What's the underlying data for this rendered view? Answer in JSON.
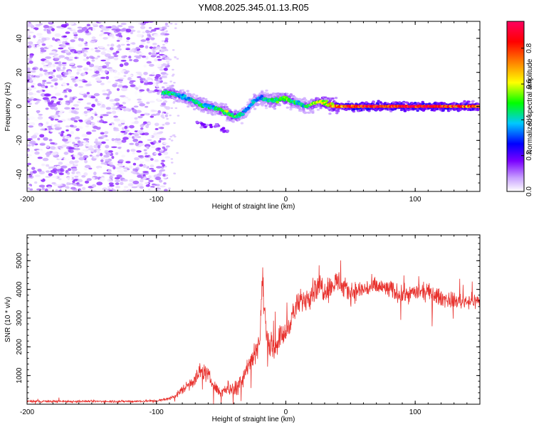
{
  "figure": {
    "title": "YM08.2025.345.01.13.R05"
  },
  "chart_data": [
    {
      "type": "heatmap",
      "name": "spectrogram",
      "title": "YM08.2025.345.01.13.R05",
      "xlabel": "Height of straight line (km)",
      "ylabel": "Frequency (Hz)",
      "xlim": [
        -200,
        150
      ],
      "ylim": [
        -50,
        50
      ],
      "xticks": [
        -200,
        -100,
        0,
        100
      ],
      "yticks": [
        -40,
        -20,
        0,
        20,
        40
      ],
      "grid": false,
      "colorbar": {
        "label": "Normalized spectral amplitude",
        "range": [
          0,
          0.95
        ],
        "ticks": [
          0.0,
          0.2,
          0.4,
          0.6,
          0.8
        ],
        "tick_labels": [
          "0.0",
          "0.2",
          "0.4",
          "0.6",
          "0.8"
        ],
        "colormap": [
          "#ffffff",
          "#c8a0ff",
          "#7a00ff",
          "#0000ff",
          "#00c8ff",
          "#00ff00",
          "#ffff00",
          "#ff8000",
          "#ff0000",
          "#ff0060"
        ]
      },
      "noise_region": {
        "x": [
          -200,
          -95
        ],
        "freq": [
          -50,
          50
        ],
        "amplitude_range": [
          0.0,
          0.2
        ]
      },
      "ridge": {
        "x": [
          -95,
          -90,
          -85,
          -80,
          -75,
          -70,
          -65,
          -60,
          -55,
          -50,
          -45,
          -40,
          -35,
          -30,
          -25,
          -20,
          -15,
          -10,
          -5,
          0,
          5,
          10,
          15,
          20,
          25,
          30,
          35,
          40,
          45,
          50,
          60,
          70,
          80,
          90,
          100,
          110,
          120,
          130,
          140,
          150
        ],
        "freq": [
          8,
          8,
          7,
          6,
          4,
          3,
          1,
          0,
          -1,
          -2,
          -4,
          -6,
          -5,
          -2,
          3,
          5,
          4,
          3,
          4,
          5,
          3,
          2,
          0,
          1,
          3,
          2,
          1,
          0,
          0,
          0,
          0,
          0,
          0,
          0,
          0,
          0,
          0,
          0,
          0,
          0
        ],
        "amplitude": [
          0.5,
          0.55,
          0.5,
          0.45,
          0.45,
          0.5,
          0.5,
          0.5,
          0.5,
          0.55,
          0.6,
          0.6,
          0.5,
          0.4,
          0.45,
          0.45,
          0.5,
          0.55,
          0.55,
          0.6,
          0.55,
          0.5,
          0.5,
          0.6,
          0.65,
          0.7,
          0.75,
          0.8,
          0.85,
          0.9,
          0.95,
          0.95,
          0.9,
          0.95,
          0.95,
          0.95,
          0.9,
          0.9,
          0.85,
          0.85
        ]
      },
      "side_branch": {
        "x": [
          -70,
          -65,
          -60,
          -55,
          -50,
          -45
        ],
        "freq": [
          -10,
          -11,
          -12,
          -11,
          -13,
          -15
        ],
        "amplitude": 0.2
      }
    },
    {
      "type": "line",
      "name": "snr",
      "xlabel": "Height of straight line (km)",
      "ylabel": "SNR (10 * v/v)",
      "xlim": [
        -200,
        150
      ],
      "ylim": [
        0,
        5900
      ],
      "xticks": [
        -200,
        -100,
        0,
        100
      ],
      "yticks": [
        1000,
        2000,
        3000,
        4000,
        5000
      ],
      "grid": false,
      "color": "#e8322e",
      "series": [
        {
          "x": [
            -200,
            -190,
            -180,
            -170,
            -160,
            -150,
            -140,
            -130,
            -120,
            -110,
            -100,
            -95,
            -90,
            -85,
            -80,
            -75,
            -70,
            -65,
            -60,
            -55,
            -50,
            -45,
            -40,
            -35,
            -30,
            -25,
            -20,
            -18,
            -15,
            -10,
            -5,
            0,
            5,
            10,
            15,
            20,
            25,
            30,
            35,
            40,
            45,
            50,
            60,
            70,
            80,
            90,
            100,
            110,
            120,
            130,
            140,
            150
          ],
          "values": [
            100,
            100,
            100,
            100,
            100,
            100,
            100,
            100,
            100,
            110,
            120,
            150,
            200,
            300,
            500,
            700,
            900,
            1200,
            1000,
            600,
            400,
            600,
            500,
            800,
            1300,
            1700,
            2300,
            4300,
            2400,
            1900,
            2300,
            2500,
            3100,
            3500,
            3700,
            3900,
            4200,
            4000,
            4100,
            4300,
            4000,
            3900,
            4000,
            4100,
            4000,
            3800,
            3900,
            3900,
            3700,
            3600,
            3600,
            3600
          ],
          "noise": [
            60,
            60,
            60,
            60,
            60,
            60,
            60,
            60,
            60,
            60,
            60,
            70,
            90,
            150,
            250,
            350,
            400,
            450,
            400,
            300,
            250,
            400,
            450,
            500,
            550,
            600,
            700,
            1000,
            700,
            650,
            650,
            600,
            600,
            650,
            650,
            700,
            750,
            700,
            650,
            650,
            600,
            550,
            500,
            500,
            500,
            450,
            450,
            450,
            450,
            400,
            400,
            400
          ]
        }
      ]
    }
  ]
}
